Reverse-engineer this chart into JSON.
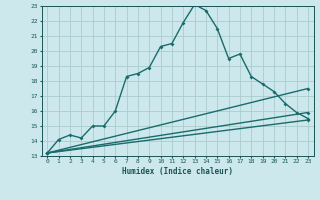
{
  "title": "",
  "xlabel": "Humidex (Indice chaleur)",
  "bg_color": "#cce8ec",
  "grid_color": "#aacccc",
  "line_color": "#1a6b6b",
  "xlim": [
    -0.5,
    23.5
  ],
  "ylim": [
    13,
    23
  ],
  "xticks": [
    0,
    1,
    2,
    3,
    4,
    5,
    6,
    7,
    8,
    9,
    10,
    11,
    12,
    13,
    14,
    15,
    16,
    17,
    18,
    19,
    20,
    21,
    22,
    23
  ],
  "yticks": [
    13,
    14,
    15,
    16,
    17,
    18,
    19,
    20,
    21,
    22,
    23
  ],
  "line1_x": [
    0,
    1,
    2,
    3,
    4,
    5,
    6,
    7,
    8,
    9,
    10,
    11,
    12,
    13,
    14,
    15,
    16,
    17,
    18,
    19,
    20,
    21,
    22,
    23
  ],
  "line1_y": [
    13.2,
    14.1,
    14.4,
    14.2,
    15.0,
    15.0,
    16.0,
    18.3,
    18.5,
    18.9,
    20.3,
    20.5,
    21.9,
    23.1,
    22.7,
    21.5,
    19.5,
    19.8,
    18.3,
    17.8,
    17.3,
    16.5,
    15.9,
    15.5
  ],
  "line2_x": [
    0,
    23
  ],
  "line2_y": [
    13.2,
    17.5
  ],
  "line3_x": [
    0,
    23
  ],
  "line3_y": [
    13.2,
    15.4
  ],
  "line4_x": [
    0,
    23
  ],
  "line4_y": [
    13.2,
    15.9
  ]
}
